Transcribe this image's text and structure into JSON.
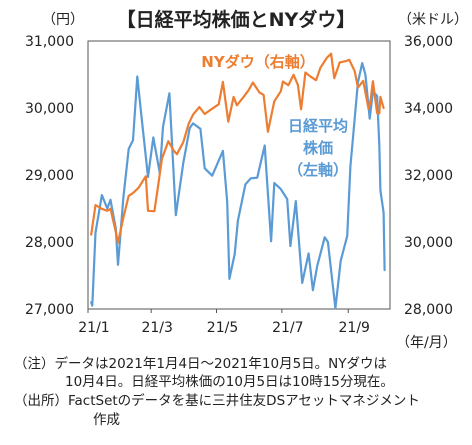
{
  "title": "【日経平均株価とNYダウ】",
  "left_unit": "（円）",
  "right_unit": "（米ドル）",
  "x_unit": "（年/月）",
  "notes": [
    "（注）データは2021年1月4日～2021年10月5日。NYダウは",
    "10月4日。日経平均株価の10月5日は10時15分現在。",
    "（出所）FactSetのデータを基に三井住友DSアセットマネジメント",
    "作成"
  ],
  "colors": {
    "nikkei": "#5B9BD5",
    "dow": "#ED7D31",
    "axis": "#333333"
  },
  "chart_data": {
    "type": "line",
    "x_ticks": [
      "21/1",
      "21/3",
      "21/5",
      "21/7",
      "21/9"
    ],
    "y_left": {
      "ticks": [
        "27,000",
        "28,000",
        "29,000",
        "30,000",
        "31,000"
      ],
      "range": [
        27000,
        31000
      ]
    },
    "y_right": {
      "ticks": [
        "28,000",
        "30,000",
        "32,000",
        "34,000",
        "36,000"
      ],
      "range": [
        28000,
        36000
      ]
    },
    "grid": false,
    "series": [
      {
        "label": "日経平均\n株価\n（左軸）",
        "axis": "left",
        "color": "#5B9BD5",
        "points": [
          [
            "2021-01-04",
            27100
          ],
          [
            "2021-01-05",
            27050
          ],
          [
            "2021-01-08",
            28140
          ],
          [
            "2021-01-14",
            28700
          ],
          [
            "2021-01-19",
            28500
          ],
          [
            "2021-01-22",
            28630
          ],
          [
            "2021-01-27",
            28200
          ],
          [
            "2021-01-29",
            27660
          ],
          [
            "2021-02-03",
            28650
          ],
          [
            "2021-02-08",
            29390
          ],
          [
            "2021-02-12",
            29520
          ],
          [
            "2021-02-16",
            30470
          ],
          [
            "2021-02-19",
            30010
          ],
          [
            "2021-02-26",
            28970
          ],
          [
            "2021-03-03",
            29560
          ],
          [
            "2021-03-09",
            29030
          ],
          [
            "2021-03-12",
            29720
          ],
          [
            "2021-03-18",
            30220
          ],
          [
            "2021-03-24",
            28400
          ],
          [
            "2021-03-31",
            29180
          ],
          [
            "2021-04-06",
            29700
          ],
          [
            "2021-04-09",
            29770
          ],
          [
            "2021-04-16",
            29690
          ],
          [
            "2021-04-20",
            29100
          ],
          [
            "2021-04-27",
            28990
          ],
          [
            "2021-05-07",
            29360
          ],
          [
            "2021-05-11",
            28600
          ],
          [
            "2021-05-13",
            27450
          ],
          [
            "2021-05-18",
            27820
          ],
          [
            "2021-05-21",
            28320
          ],
          [
            "2021-05-28",
            28860
          ],
          [
            "2021-06-02",
            28950
          ],
          [
            "2021-06-08",
            28960
          ],
          [
            "2021-06-15",
            29440
          ],
          [
            "2021-06-21",
            28010
          ],
          [
            "2021-06-24",
            28880
          ],
          [
            "2021-06-30",
            28790
          ],
          [
            "2021-07-06",
            28640
          ],
          [
            "2021-07-09",
            27940
          ],
          [
            "2021-07-14",
            28610
          ],
          [
            "2021-07-20",
            27390
          ],
          [
            "2021-07-26",
            27830
          ],
          [
            "2021-07-30",
            27280
          ],
          [
            "2021-08-03",
            27640
          ],
          [
            "2021-08-10",
            28070
          ],
          [
            "2021-08-13",
            28000
          ],
          [
            "2021-08-20",
            27010
          ],
          [
            "2021-08-25",
            27720
          ],
          [
            "2021-08-31",
            28090
          ],
          [
            "2021-09-03",
            29130
          ],
          [
            "2021-09-06",
            29660
          ],
          [
            "2021-09-10",
            30380
          ],
          [
            "2021-09-14",
            30670
          ],
          [
            "2021-09-17",
            30500
          ],
          [
            "2021-09-21",
            29840
          ],
          [
            "2021-09-24",
            30250
          ],
          [
            "2021-09-28",
            30180
          ],
          [
            "2021-09-30",
            29450
          ],
          [
            "2021-10-01",
            28770
          ],
          [
            "2021-10-04",
            28440
          ],
          [
            "2021-10-05",
            27580
          ]
        ]
      },
      {
        "label": "NYダウ（右軸）",
        "axis": "right",
        "color": "#ED7D31",
        "points": [
          [
            "2021-01-04",
            30220
          ],
          [
            "2021-01-08",
            31100
          ],
          [
            "2021-01-14",
            30990
          ],
          [
            "2021-01-19",
            30930
          ],
          [
            "2021-01-22",
            30990
          ],
          [
            "2021-01-27",
            30300
          ],
          [
            "2021-01-29",
            29980
          ],
          [
            "2021-02-03",
            30720
          ],
          [
            "2021-02-08",
            31380
          ],
          [
            "2021-02-12",
            31460
          ],
          [
            "2021-02-17",
            31610
          ],
          [
            "2021-02-24",
            31960
          ],
          [
            "2021-02-26",
            30930
          ],
          [
            "2021-03-04",
            30920
          ],
          [
            "2021-03-08",
            31800
          ],
          [
            "2021-03-11",
            32480
          ],
          [
            "2021-03-17",
            33010
          ],
          [
            "2021-03-22",
            32730
          ],
          [
            "2021-03-25",
            32620
          ],
          [
            "2021-03-31",
            32980
          ],
          [
            "2021-04-05",
            33530
          ],
          [
            "2021-04-09",
            33800
          ],
          [
            "2021-04-15",
            34030
          ],
          [
            "2021-04-20",
            33820
          ],
          [
            "2021-04-27",
            33980
          ],
          [
            "2021-05-03",
            34110
          ],
          [
            "2021-05-07",
            34780
          ],
          [
            "2021-05-12",
            33590
          ],
          [
            "2021-05-17",
            34330
          ],
          [
            "2021-05-20",
            34080
          ],
          [
            "2021-05-26",
            34320
          ],
          [
            "2021-05-31",
            34530
          ],
          [
            "2021-06-04",
            34760
          ],
          [
            "2021-06-10",
            34470
          ],
          [
            "2021-06-14",
            34390
          ],
          [
            "2021-06-18",
            33290
          ],
          [
            "2021-06-24",
            34200
          ],
          [
            "2021-06-30",
            34500
          ],
          [
            "2021-07-02",
            34790
          ],
          [
            "2021-07-07",
            34680
          ],
          [
            "2021-07-12",
            34990
          ],
          [
            "2021-07-16",
            34690
          ],
          [
            "2021-07-19",
            33960
          ],
          [
            "2021-07-23",
            35060
          ],
          [
            "2021-07-28",
            34930
          ],
          [
            "2021-08-02",
            34830
          ],
          [
            "2021-08-06",
            35200
          ],
          [
            "2021-08-12",
            35500
          ],
          [
            "2021-08-16",
            35620
          ],
          [
            "2021-08-19",
            34890
          ],
          [
            "2021-08-24",
            35360
          ],
          [
            "2021-08-30",
            35400
          ],
          [
            "2021-09-02",
            35440
          ],
          [
            "2021-09-07",
            35100
          ],
          [
            "2021-09-10",
            34610
          ],
          [
            "2021-09-15",
            34810
          ],
          [
            "2021-09-20",
            33970
          ],
          [
            "2021-09-22",
            34260
          ],
          [
            "2021-09-24",
            34800
          ],
          [
            "2021-09-28",
            33850
          ],
          [
            "2021-09-30",
            33840
          ],
          [
            "2021-10-01",
            34330
          ],
          [
            "2021-10-04",
            34000
          ]
        ]
      }
    ]
  }
}
